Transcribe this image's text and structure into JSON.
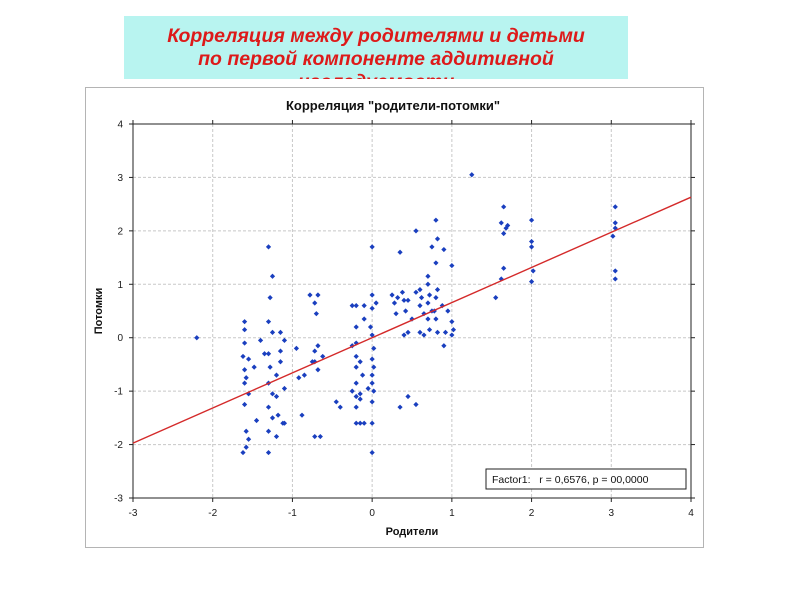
{
  "banner": {
    "line1": "Корреляция между родителями и детьми",
    "line2": "по первой компоненте аддитивной",
    "line3": "наследуемости"
  },
  "colors": {
    "banner_bg": "#b8f4f0",
    "banner_text": "#dd1a1a",
    "points": "#1a3fbf",
    "regression_line": "#d42a2a"
  },
  "chart_data": {
    "type": "scatter",
    "title": "Корреляция \"родители-потомки\"",
    "xlabel": "Родители",
    "ylabel": "Потомки",
    "xlim": [
      -3,
      4
    ],
    "ylim": [
      -3,
      4
    ],
    "x_ticks": [
      -3,
      -2,
      -1,
      0,
      1,
      2,
      3,
      4
    ],
    "y_ticks": [
      -3,
      -2,
      -1,
      0,
      1,
      2,
      3,
      4
    ],
    "grid": true,
    "regression": {
      "slope": 0.6576,
      "intercept": 0.0
    },
    "annotation": "Factor1:   r = 0,6576, p = 00,0000",
    "annotation_position": "bottom-right",
    "series": [
      {
        "points": [
          [
            -2.2,
            0.0
          ],
          [
            -1.6,
            0.3
          ],
          [
            -1.6,
            0.15
          ],
          [
            -1.6,
            -0.1
          ],
          [
            -1.62,
            -0.35
          ],
          [
            -1.55,
            -0.4
          ],
          [
            -1.6,
            -0.6
          ],
          [
            -1.58,
            -0.75
          ],
          [
            -1.6,
            -0.85
          ],
          [
            -1.55,
            -1.05
          ],
          [
            -1.6,
            -1.25
          ],
          [
            -1.45,
            -1.55
          ],
          [
            -1.58,
            -1.75
          ],
          [
            -1.55,
            -1.9
          ],
          [
            -1.58,
            -2.05
          ],
          [
            -1.62,
            -2.15
          ],
          [
            -1.48,
            -0.55
          ],
          [
            -1.4,
            -0.05
          ],
          [
            -1.35,
            -0.3
          ],
          [
            -1.3,
            1.7
          ],
          [
            -1.25,
            1.15
          ],
          [
            -1.28,
            0.75
          ],
          [
            -1.3,
            0.3
          ],
          [
            -1.25,
            0.1
          ],
          [
            -1.3,
            -0.3
          ],
          [
            -1.28,
            -0.55
          ],
          [
            -1.2,
            -0.7
          ],
          [
            -1.3,
            -0.85
          ],
          [
            -1.25,
            -1.05
          ],
          [
            -1.3,
            -1.3
          ],
          [
            -1.25,
            -1.5
          ],
          [
            -1.3,
            -1.75
          ],
          [
            -1.3,
            -2.15
          ],
          [
            -1.2,
            -1.1
          ],
          [
            -1.15,
            -0.45
          ],
          [
            -1.15,
            0.1
          ],
          [
            -1.1,
            -0.05
          ],
          [
            -1.15,
            -0.25
          ],
          [
            -1.1,
            -0.95
          ],
          [
            -1.2,
            -1.85
          ],
          [
            -1.12,
            -1.6
          ],
          [
            -1.1,
            -1.6
          ],
          [
            -1.18,
            -1.45
          ],
          [
            -0.95,
            -0.2
          ],
          [
            -0.85,
            -0.7
          ],
          [
            -0.88,
            -1.45
          ],
          [
            -0.92,
            -0.75
          ],
          [
            -0.78,
            0.8
          ],
          [
            -0.72,
            0.65
          ],
          [
            -0.7,
            0.45
          ],
          [
            -0.68,
            0.8
          ],
          [
            -0.72,
            -0.25
          ],
          [
            -0.72,
            -0.45
          ],
          [
            -0.68,
            -0.6
          ],
          [
            -0.72,
            -1.85
          ],
          [
            -0.65,
            -1.85
          ],
          [
            -0.68,
            -0.15
          ],
          [
            -0.75,
            -0.45
          ],
          [
            -0.62,
            -0.35
          ],
          [
            -0.45,
            -1.2
          ],
          [
            -0.4,
            -1.3
          ],
          [
            -0.25,
            0.6
          ],
          [
            -0.2,
            0.6
          ],
          [
            -0.2,
            0.2
          ],
          [
            -0.2,
            -0.1
          ],
          [
            -0.25,
            -0.15
          ],
          [
            -0.2,
            -0.35
          ],
          [
            -0.15,
            -0.45
          ],
          [
            -0.2,
            -0.55
          ],
          [
            -0.2,
            -0.85
          ],
          [
            -0.25,
            -1.0
          ],
          [
            -0.2,
            -1.1
          ],
          [
            -0.15,
            -1.15
          ],
          [
            -0.2,
            -1.3
          ],
          [
            -0.2,
            -1.6
          ],
          [
            -0.15,
            -1.6
          ],
          [
            -0.1,
            -1.6
          ],
          [
            -0.15,
            -1.05
          ],
          [
            -0.1,
            0.6
          ],
          [
            -0.1,
            0.35
          ],
          [
            -0.12,
            -0.7
          ],
          [
            -0.05,
            -0.95
          ],
          [
            -0.02,
            0.2
          ],
          [
            0.0,
            0.05
          ],
          [
            0.0,
            1.7
          ],
          [
            0.0,
            0.8
          ],
          [
            0.0,
            0.55
          ],
          [
            0.05,
            0.65
          ],
          [
            0.02,
            -0.2
          ],
          [
            0.0,
            -0.4
          ],
          [
            0.02,
            -0.55
          ],
          [
            0.0,
            -0.7
          ],
          [
            0.0,
            -0.85
          ],
          [
            0.02,
            -1.0
          ],
          [
            0.0,
            -1.2
          ],
          [
            0.0,
            -1.6
          ],
          [
            0.0,
            -2.15
          ],
          [
            0.25,
            0.8
          ],
          [
            0.28,
            0.65
          ],
          [
            0.3,
            0.45
          ],
          [
            0.35,
            1.6
          ],
          [
            0.38,
            0.85
          ],
          [
            0.32,
            0.75
          ],
          [
            0.4,
            0.7
          ],
          [
            0.35,
            -1.3
          ],
          [
            0.45,
            0.7
          ],
          [
            0.42,
            0.5
          ],
          [
            0.45,
            0.1
          ],
          [
            0.4,
            0.05
          ],
          [
            0.5,
            0.35
          ],
          [
            0.45,
            -1.1
          ],
          [
            0.55,
            2.0
          ],
          [
            0.55,
            0.85
          ],
          [
            0.55,
            -1.25
          ],
          [
            0.6,
            0.9
          ],
          [
            0.62,
            0.75
          ],
          [
            0.6,
            0.6
          ],
          [
            0.65,
            0.45
          ],
          [
            0.6,
            0.1
          ],
          [
            0.65,
            0.05
          ],
          [
            0.7,
            1.0
          ],
          [
            0.72,
            0.8
          ],
          [
            0.7,
            0.65
          ],
          [
            0.75,
            0.5
          ],
          [
            0.7,
            0.35
          ],
          [
            0.72,
            0.15
          ],
          [
            0.75,
            1.7
          ],
          [
            0.7,
            1.15
          ],
          [
            0.8,
            2.2
          ],
          [
            0.82,
            1.85
          ],
          [
            0.8,
            1.4
          ],
          [
            0.82,
            0.9
          ],
          [
            0.8,
            0.75
          ],
          [
            0.78,
            0.5
          ],
          [
            0.8,
            0.35
          ],
          [
            0.82,
            0.1
          ],
          [
            0.9,
            1.65
          ],
          [
            0.95,
            0.5
          ],
          [
            0.92,
            0.1
          ],
          [
            0.88,
            0.6
          ],
          [
            0.9,
            -0.15
          ],
          [
            1.0,
            1.35
          ],
          [
            1.0,
            0.3
          ],
          [
            1.02,
            0.15
          ],
          [
            1.0,
            0.05
          ],
          [
            1.25,
            3.05
          ],
          [
            1.55,
            0.75
          ],
          [
            1.65,
            2.45
          ],
          [
            1.62,
            2.15
          ],
          [
            1.68,
            2.05
          ],
          [
            1.65,
            1.95
          ],
          [
            1.7,
            2.1
          ],
          [
            1.65,
            1.3
          ],
          [
            1.62,
            1.1
          ],
          [
            2.0,
            2.2
          ],
          [
            2.0,
            1.8
          ],
          [
            2.0,
            1.7
          ],
          [
            2.02,
            1.25
          ],
          [
            2.0,
            1.05
          ],
          [
            3.05,
            2.45
          ],
          [
            3.05,
            2.15
          ],
          [
            3.05,
            2.05
          ],
          [
            3.02,
            1.9
          ],
          [
            3.05,
            1.25
          ],
          [
            3.05,
            1.1
          ]
        ]
      }
    ]
  }
}
